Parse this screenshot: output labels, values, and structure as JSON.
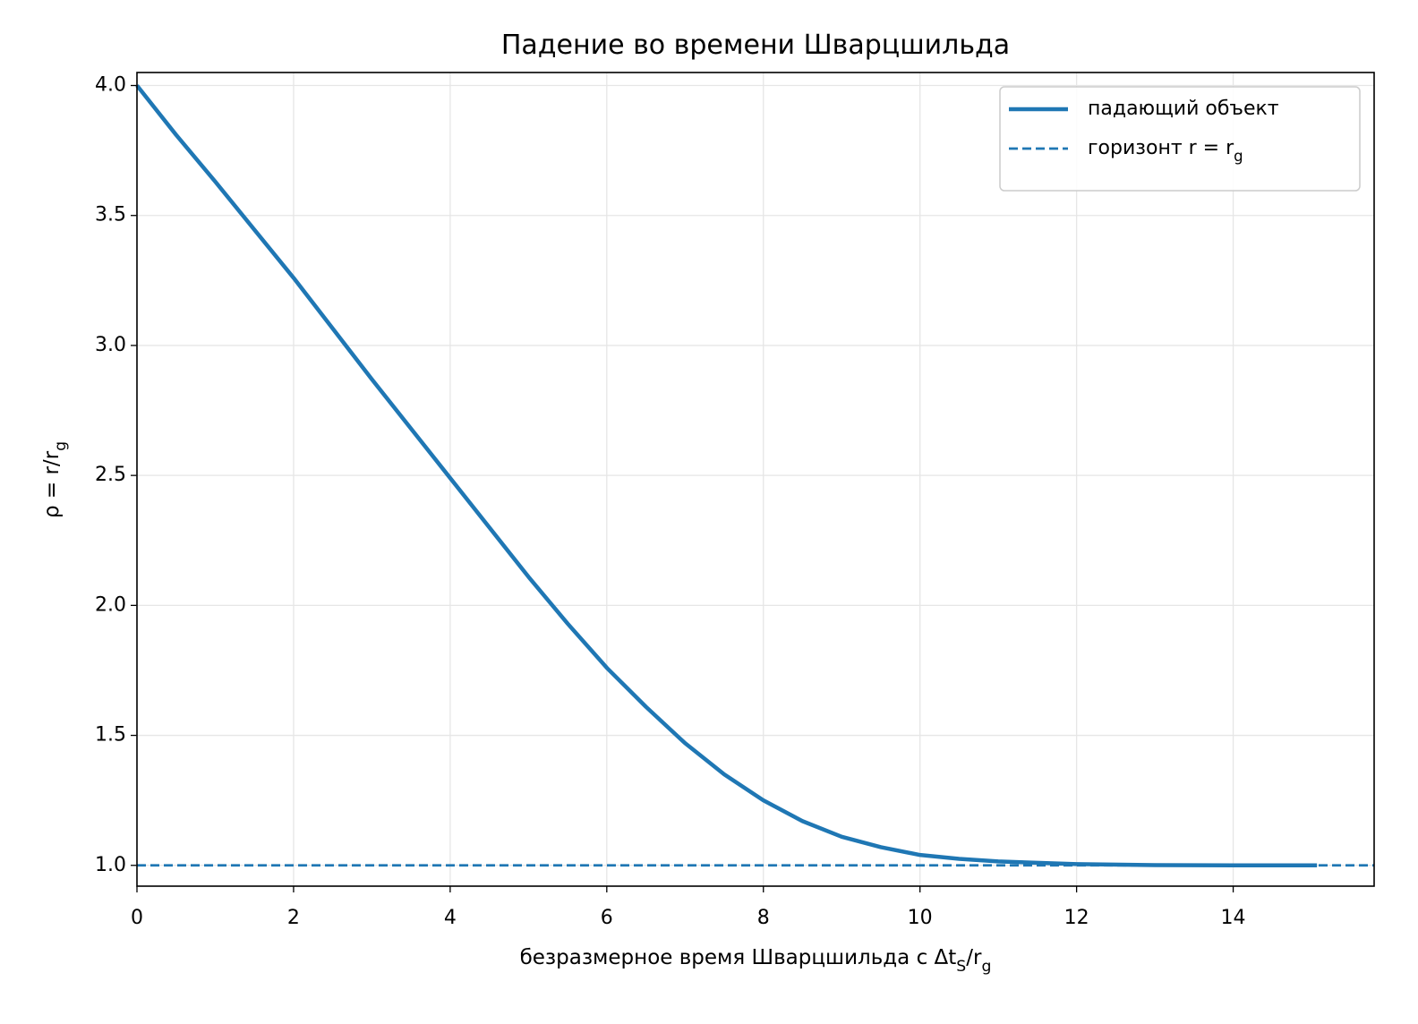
{
  "chart_data": {
    "type": "line",
    "title": "Падение во времени Шварцшильда",
    "x_label": "безразмерное время Шварцшильда c Δt_S/r_g",
    "y_label": "ρ = r/r_g",
    "x": [
      0,
      0.5,
      1,
      2,
      3,
      4,
      5,
      5.5,
      6,
      6.5,
      7,
      7.5,
      8,
      8.5,
      9,
      9.5,
      10,
      10.5,
      11,
      12,
      13,
      14,
      15.07
    ],
    "series": [
      {
        "name": "падающий объект",
        "color": "#1f77b4",
        "values": [
          4.0,
          3.81,
          3.63,
          3.26,
          2.87,
          2.49,
          2.11,
          1.93,
          1.76,
          1.61,
          1.47,
          1.35,
          1.25,
          1.17,
          1.11,
          1.07,
          1.04,
          1.025,
          1.015,
          1.005,
          1.001,
          1.0,
          1.0
        ]
      }
    ],
    "hlines": [
      {
        "name": "горизонт r = r_g",
        "color": "#1f77b4",
        "value": 1.0,
        "dashed": true
      }
    ],
    "xlim": [
      0,
      15.8
    ],
    "ylim": [
      0.92,
      4.05
    ],
    "xticks": [
      0,
      2,
      4,
      6,
      8,
      10,
      12,
      14
    ],
    "yticks": [
      {
        "value": 1,
        "label": "1.0"
      },
      {
        "value": 1.5,
        "label": "1.5"
      },
      {
        "value": 2,
        "label": "2.0"
      },
      {
        "value": 2.5,
        "label": "2.5"
      },
      {
        "value": 3,
        "label": "3.0"
      },
      {
        "value": 3.5,
        "label": "3.5"
      },
      {
        "value": 4,
        "label": "4.0"
      }
    ],
    "grid": true,
    "legend": "upper right"
  }
}
